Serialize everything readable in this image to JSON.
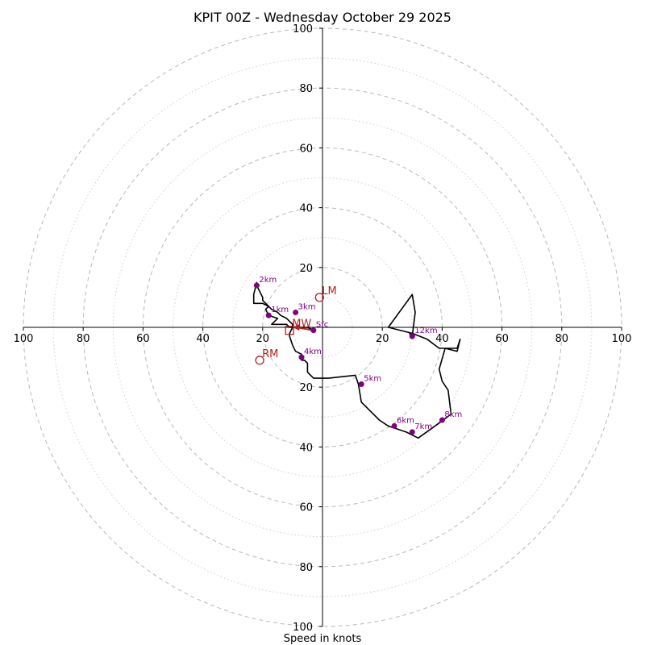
{
  "chart_data": {
    "type": "hodograph",
    "title": "KPIT 00Z - Wednesday October 29 2025",
    "xlabel": "Speed in knots",
    "range": [
      -100,
      100
    ],
    "ring_spacing_major": 20,
    "ring_spacing_minor": 10,
    "grid": true,
    "axis_tick_values": [
      100,
      80,
      60,
      40,
      20
    ],
    "axis_tick_labels": [
      "100",
      "80",
      "60",
      "40",
      "20"
    ],
    "colors": {
      "trace": "#000000",
      "height_marker": "#800080",
      "storm_motion": "#b22222",
      "grid": "#bbbbbb"
    },
    "trace": [
      [
        -3,
        -1
      ],
      [
        -5,
        0
      ],
      [
        -11,
        0
      ],
      [
        -12,
        1
      ],
      [
        -14,
        1
      ],
      [
        -16,
        1
      ],
      [
        -17,
        1
      ],
      [
        -15,
        3
      ],
      [
        -18,
        4
      ],
      [
        -19,
        6
      ],
      [
        -18,
        7
      ],
      [
        -20,
        8
      ],
      [
        -23,
        8
      ],
      [
        -23,
        11
      ],
      [
        -22,
        15
      ],
      [
        -22,
        14
      ],
      [
        -21,
        12
      ],
      [
        -20,
        10
      ],
      [
        -20,
        9
      ],
      [
        -17,
        6
      ],
      [
        -15,
        5
      ],
      [
        -14,
        4
      ],
      [
        -12,
        3
      ],
      [
        -11,
        2
      ],
      [
        -10,
        1
      ],
      [
        -10,
        0
      ],
      [
        -11,
        -2
      ],
      [
        -11,
        -3
      ],
      [
        -10,
        -6
      ],
      [
        -9,
        -8
      ],
      [
        -7,
        -9
      ],
      [
        -7,
        -11
      ],
      [
        -6,
        -11
      ],
      [
        -5,
        -12
      ],
      [
        -5,
        -15
      ],
      [
        -3,
        -17
      ],
      [
        2,
        -17
      ],
      [
        11,
        -16
      ],
      [
        12,
        -19
      ],
      [
        13,
        -25
      ],
      [
        16,
        -28
      ],
      [
        19,
        -31
      ],
      [
        22,
        -33
      ],
      [
        25,
        -34
      ],
      [
        28,
        -35
      ],
      [
        32,
        -37
      ],
      [
        39,
        -32
      ],
      [
        43,
        -29
      ],
      [
        42,
        -21
      ],
      [
        40,
        -18
      ],
      [
        39,
        -14
      ],
      [
        41,
        -7
      ],
      [
        45,
        -8
      ],
      [
        46,
        -4
      ],
      [
        45,
        -7
      ],
      [
        39,
        -7
      ],
      [
        35,
        -4
      ],
      [
        30,
        -2
      ],
      [
        22,
        0
      ],
      [
        30,
        11
      ],
      [
        31,
        5
      ],
      [
        30,
        -3
      ],
      [
        29,
        -2
      ]
    ],
    "height_markers": [
      {
        "label": "Sfc",
        "u": -3,
        "v": -1
      },
      {
        "label": "1km",
        "u": -18,
        "v": 4
      },
      {
        "label": "2km",
        "u": -22,
        "v": 14
      },
      {
        "label": "3km",
        "u": -9,
        "v": 5
      },
      {
        "label": "4km",
        "u": -7,
        "v": -10
      },
      {
        "label": "5km",
        "u": 13,
        "v": -19
      },
      {
        "label": "6km",
        "u": 24,
        "v": -33
      },
      {
        "label": "7km",
        "u": 30,
        "v": -35
      },
      {
        "label": "8km",
        "u": 40,
        "v": -31
      },
      {
        "label": "12km",
        "u": 30,
        "v": -3
      }
    ],
    "storm_motion": [
      {
        "label": "LM",
        "u": -1,
        "v": 10
      },
      {
        "label": "RM",
        "u": -21,
        "v": -11
      },
      {
        "label": "MW",
        "u": -11,
        "v": -1
      }
    ],
    "shear_arrow": {
      "from": [
        -3,
        -1
      ],
      "to": [
        -11,
        0
      ]
    }
  }
}
